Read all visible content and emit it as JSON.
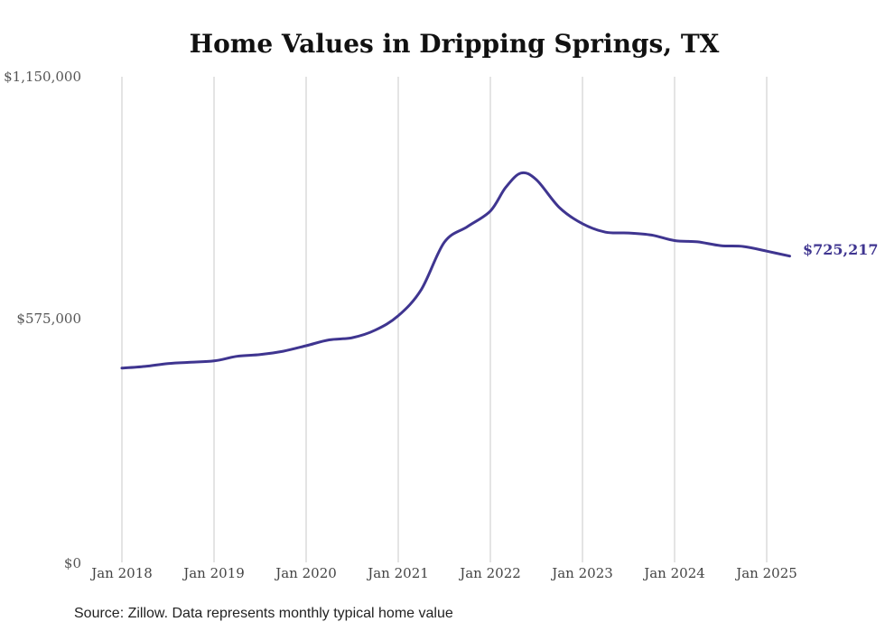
{
  "chart_data": {
    "type": "line",
    "title": "Home Values in Dripping Springs, TX",
    "xlabel": "",
    "ylabel": "",
    "y_ticks": [
      "$0",
      "$575,000",
      "$1,150,000"
    ],
    "ylim": [
      0,
      1150000
    ],
    "x_ticks": [
      "Jan 2018",
      "Jan 2019",
      "Jan 2020",
      "Jan 2021",
      "Jan 2022",
      "Jan 2023",
      "Jan 2024",
      "Jan 2025"
    ],
    "xlim": [
      "2018-01",
      "2025-12"
    ],
    "grid": "vertical",
    "end_label": "$725,217",
    "line_color": "#3f3590",
    "series": [
      {
        "x": [
          "2018-01",
          "2018-04",
          "2018-07",
          "2018-10",
          "2019-01",
          "2019-04",
          "2019-07",
          "2019-10",
          "2020-01",
          "2020-04",
          "2020-07",
          "2020-10",
          "2021-01",
          "2021-04",
          "2021-07",
          "2021-10",
          "2022-01",
          "2022-03",
          "2022-05",
          "2022-07",
          "2022-10",
          "2023-01",
          "2023-04",
          "2023-07",
          "2023-10",
          "2024-01",
          "2024-04",
          "2024-07",
          "2024-10",
          "2025-01",
          "2025-04"
        ],
        "values": [
          460000,
          464000,
          471000,
          474000,
          477000,
          488000,
          492000,
          500000,
          513000,
          527000,
          532000,
          550000,
          584000,
          646000,
          758000,
          795000,
          832000,
          888000,
          922000,
          906000,
          840000,
          802000,
          782000,
          780000,
          775000,
          762000,
          759000,
          750000,
          748000,
          737000,
          725217
        ]
      }
    ],
    "source": "Source: Zillow. Data represents monthly typical home value"
  }
}
